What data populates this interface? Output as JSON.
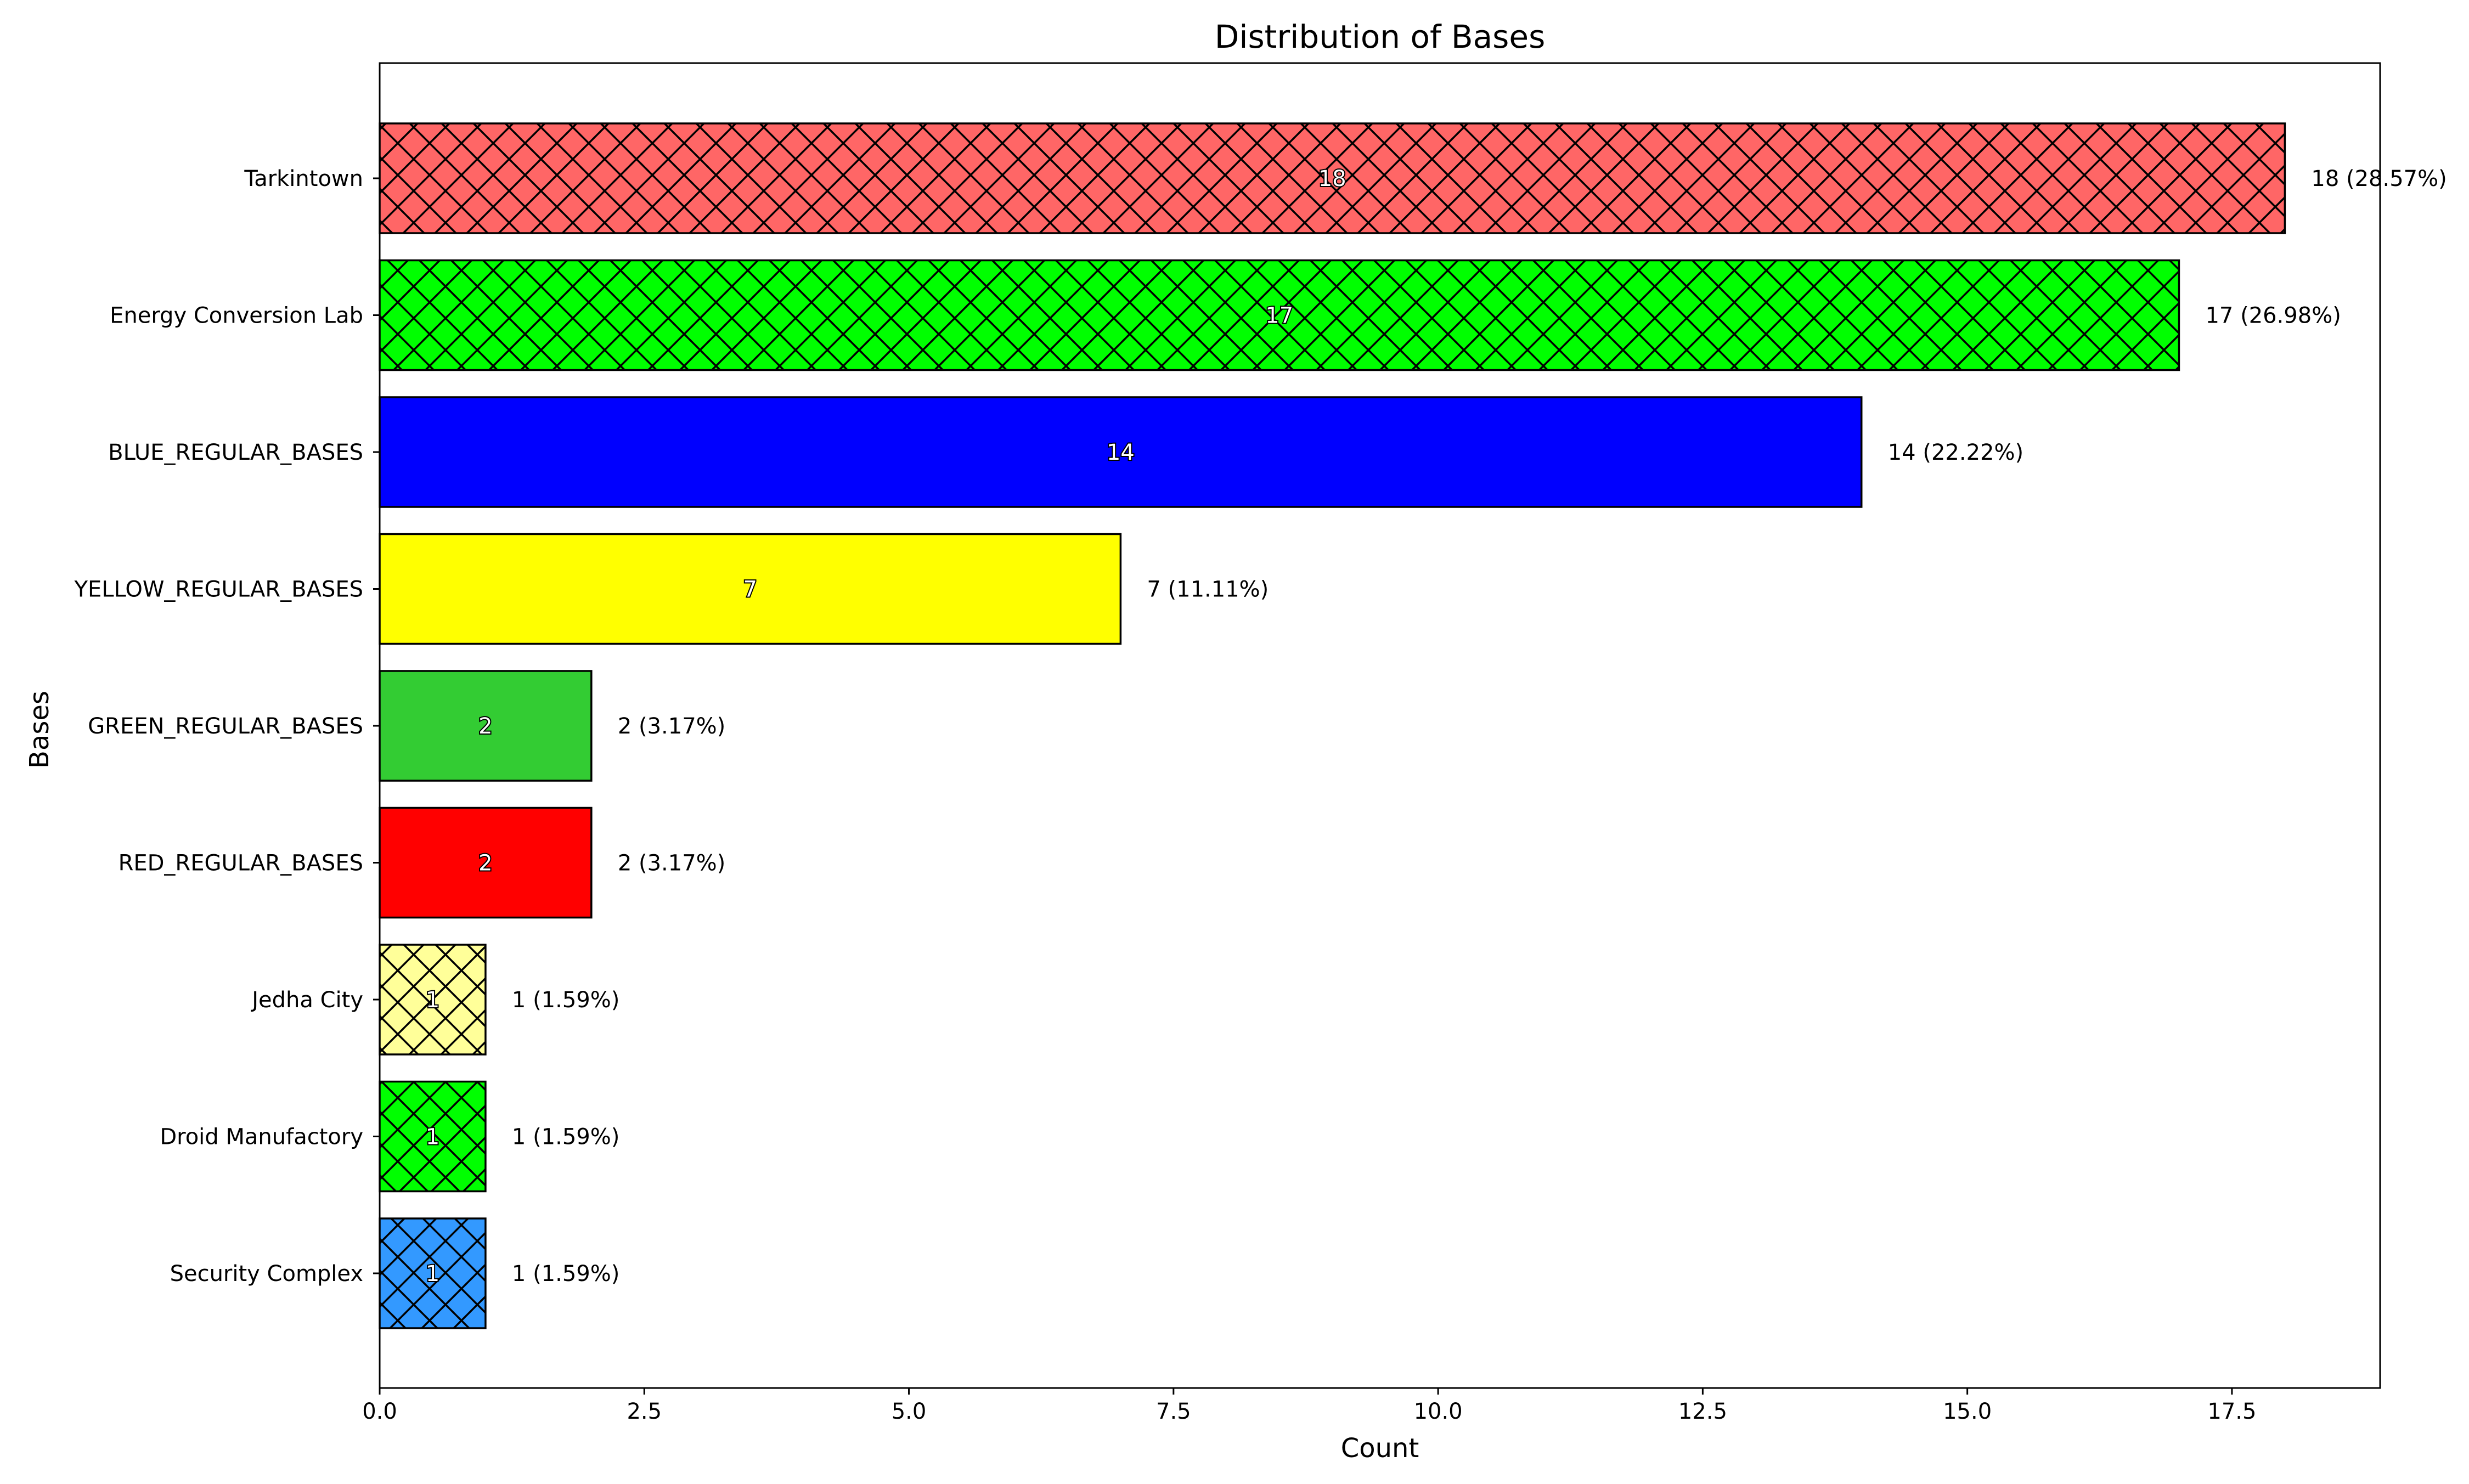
{
  "chart_data": {
    "type": "bar",
    "orientation": "horizontal",
    "title": "Distribution of Bases",
    "xlabel": "Count",
    "ylabel": "Bases",
    "xlim": [
      0,
      18.9
    ],
    "xticks": [
      0,
      2.5,
      5,
      7.5,
      10,
      12.5,
      15,
      17.5
    ],
    "xtick_labels": [
      "0.0",
      "2.5",
      "5.0",
      "7.5",
      "10.0",
      "12.5",
      "15.0",
      "17.5"
    ],
    "grid": false,
    "legend": "none",
    "categories": [
      "Tarkintown",
      "Energy Conversion Lab",
      "BLUE_REGULAR_BASES",
      "YELLOW_REGULAR_BASES",
      "GREEN_REGULAR_BASES",
      "RED_REGULAR_BASES",
      "Jedha City",
      "Droid Manufactory",
      "Security Complex"
    ],
    "values": [
      18,
      17,
      14,
      7,
      2,
      2,
      1,
      1,
      1
    ],
    "inner_labels": [
      "18",
      "17",
      "14",
      "7",
      "2",
      "2",
      "1",
      "1",
      "1"
    ],
    "value_labels": [
      "18 (28.57%)",
      "17 (26.98%)",
      "14 (22.22%)",
      "7 (11.11%)",
      "2 (3.17%)",
      "2 (3.17%)",
      "1 (1.59%)",
      "1 (1.59%)",
      "1 (1.59%)"
    ],
    "colors": [
      "#ff6666",
      "#00ff00",
      "#0000ff",
      "#ffff00",
      "#33cc33",
      "#ff0000",
      "#ffff99",
      "#00ff00",
      "#3399ff"
    ],
    "hatched": [
      true,
      true,
      false,
      false,
      false,
      false,
      true,
      true,
      true
    ]
  }
}
